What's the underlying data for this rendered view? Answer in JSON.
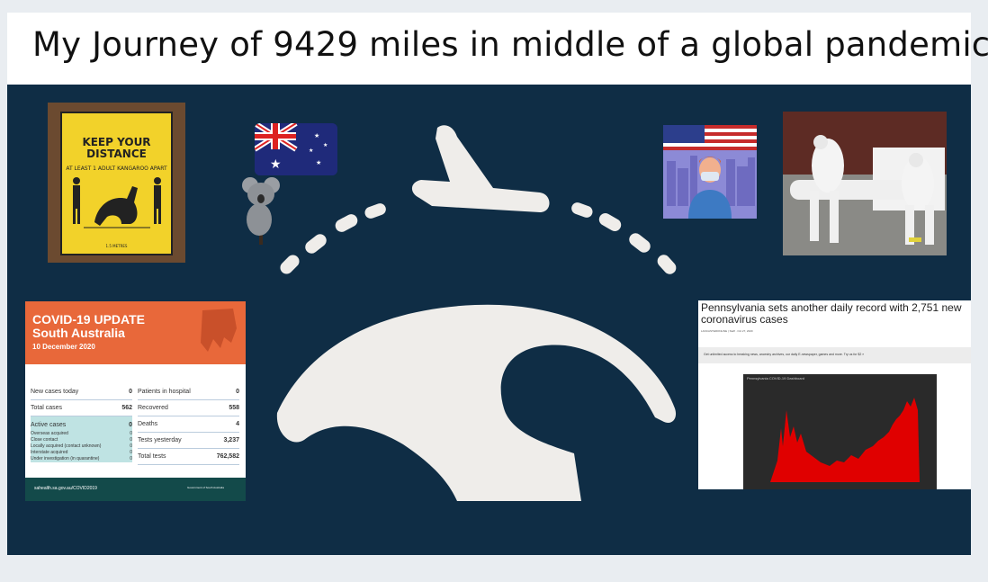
{
  "slide": {
    "title": "My Journey of 9429 miles in middle of a global pandemic"
  },
  "sign": {
    "heading": "KEEP YOUR DISTANCE",
    "sub": "AT LEAST 1 ADULT KANGAROO APART",
    "foot": "1.5 METRES"
  },
  "covid_update": {
    "title": "COVID-19 UPDATE South Australia",
    "date": "10 December 2020",
    "left_rows": [
      {
        "label": "New cases today",
        "value": "0"
      },
      {
        "label": "Total cases",
        "value": "562"
      },
      {
        "label": "Active cases",
        "value": "0"
      }
    ],
    "active_sub": [
      {
        "label": "Overseas acquired",
        "value": "0"
      },
      {
        "label": "Close contact",
        "value": "0"
      },
      {
        "label": "Locally acquired (contact unknown)",
        "value": "0"
      },
      {
        "label": "Interstate acquired",
        "value": "0"
      },
      {
        "label": "Under investigation (in quarantine)",
        "value": "0"
      }
    ],
    "right_rows": [
      {
        "label": "Patients in hospital",
        "value": "0"
      },
      {
        "label": "Recovered",
        "value": "558"
      },
      {
        "label": "Deaths",
        "value": "4"
      },
      {
        "label": "Tests yesterday",
        "value": "3,237"
      },
      {
        "label": "Total tests",
        "value": "762,582"
      }
    ],
    "footer": "sahealth.sa.gov.au/COVID2019",
    "gov": "Government of South Australia"
  },
  "pa_article": {
    "title": "Pennsylvania sets another daily record with 2,751 new coronavirus cases",
    "byline": "LANCASTERONLINE | Staff · Oct 27, 2020",
    "banner": "Get unlimited access to breaking news, ancestry archives, our daily E-newspaper, games and more. Try us for $2 »",
    "chart_title": "Pennsylvania COVID-19 Dashboard"
  },
  "colors": {
    "canvas_bg": "#0f2d45",
    "graphic": "#efedea",
    "covid_orange": "#e8683a",
    "covid_teal": "#134a4a",
    "chart_red": "#e00000"
  },
  "icons": {
    "plane": "airplane-icon",
    "globe": "globe-arc-icon",
    "koala": "koala-icon"
  }
}
